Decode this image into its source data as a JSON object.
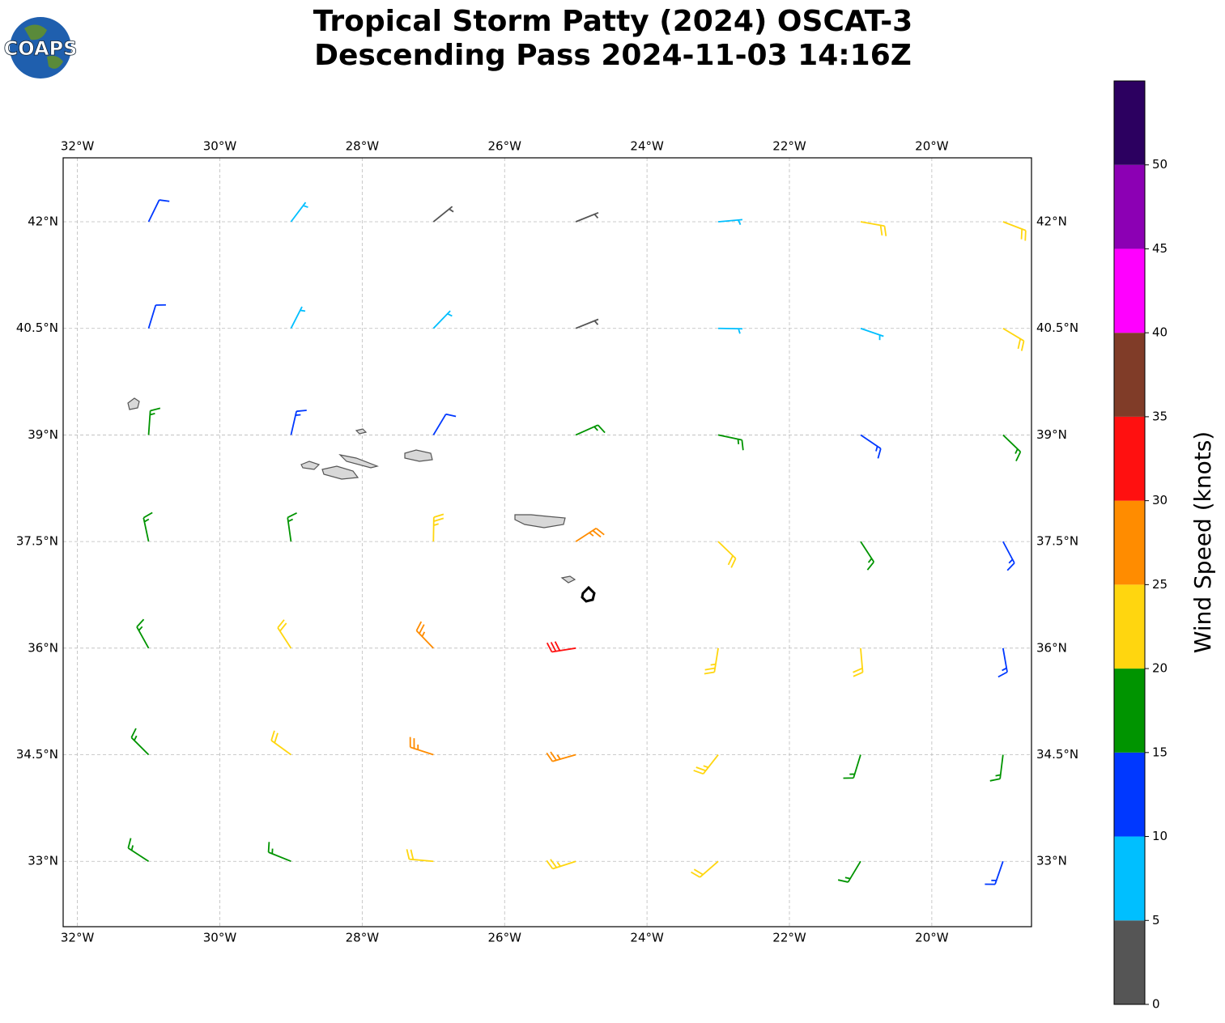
{
  "logo": "COAPS",
  "chart_data": {
    "type": "barbs",
    "title": [
      "Tropical Storm Patty (2024) OSCAT-3",
      "Descending Pass 2024-11-03 14:16Z"
    ],
    "xlim": [
      -32.2,
      -18.6
    ],
    "ylim": [
      32.08,
      42.9
    ],
    "xticks": [
      {
        "value": -32,
        "label": "32°W"
      },
      {
        "value": -30,
        "label": "30°W"
      },
      {
        "value": -28,
        "label": "28°W"
      },
      {
        "value": -26,
        "label": "26°W"
      },
      {
        "value": -24,
        "label": "24°W"
      },
      {
        "value": -22,
        "label": "22°W"
      },
      {
        "value": -20,
        "label": "20°W"
      }
    ],
    "yticks": [
      {
        "value": 33,
        "label": "33°N"
      },
      {
        "value": 34.5,
        "label": "34.5°N"
      },
      {
        "value": 36,
        "label": "36°N"
      },
      {
        "value": 37.5,
        "label": "37.5°N"
      },
      {
        "value": 39,
        "label": "39°N"
      },
      {
        "value": 40.5,
        "label": "40.5°N"
      },
      {
        "value": 42,
        "label": "42°N"
      }
    ],
    "grid": true,
    "wind": {
      "lons": [
        -31,
        -29,
        -27,
        -25,
        -23,
        -21,
        -19
      ],
      "lats": [
        33,
        34.5,
        36,
        37.5,
        39,
        40.5,
        42
      ],
      "speed": [
        [
          16,
          19,
          22,
          23,
          21,
          17,
          14
        ],
        [
          17,
          22,
          25,
          26,
          23,
          18,
          16
        ],
        [
          17,
          21,
          26,
          31,
          24,
          21,
          14
        ],
        [
          17,
          19,
          23,
          27,
          22,
          18,
          13
        ],
        [
          16,
          13,
          12,
          17,
          17,
          14,
          18
        ],
        [
          12,
          8,
          7,
          4,
          8,
          9,
          21
        ],
        [
          12,
          8,
          3,
          4,
          7,
          22,
          22
        ]
      ],
      "direction": [
        [
          303,
          292,
          275,
          252,
          229,
          211,
          199
        ],
        [
          315,
          306,
          288,
          254,
          218,
          197,
          187
        ],
        [
          331,
          327,
          316,
          261,
          189,
          175,
          170
        ],
        [
          348,
          352,
          1,
          57,
          134,
          147,
          152
        ],
        [
          4,
          13,
          31,
          66,
          102,
          124,
          134
        ],
        [
          17,
          27,
          44,
          68,
          91,
          109,
          121
        ],
        [
          26,
          37,
          51,
          68,
          85,
          100,
          111
        ]
      ]
    },
    "colorbar": {
      "label": "Wind Speed (knots)",
      "bounds": [
        0,
        5,
        10,
        15,
        20,
        25,
        30,
        35,
        40,
        45,
        50,
        55
      ],
      "colors": [
        "#555555",
        "#00bfff",
        "#0038ff",
        "#009400",
        "#ffd60f",
        "#ff8c00",
        "#ff1010",
        "#803c28",
        "#ff00ff",
        "#8c00b4",
        "#2c0060"
      ],
      "ticks": [
        0,
        5,
        10,
        15,
        20,
        25,
        30,
        35,
        40,
        45,
        50
      ]
    }
  }
}
